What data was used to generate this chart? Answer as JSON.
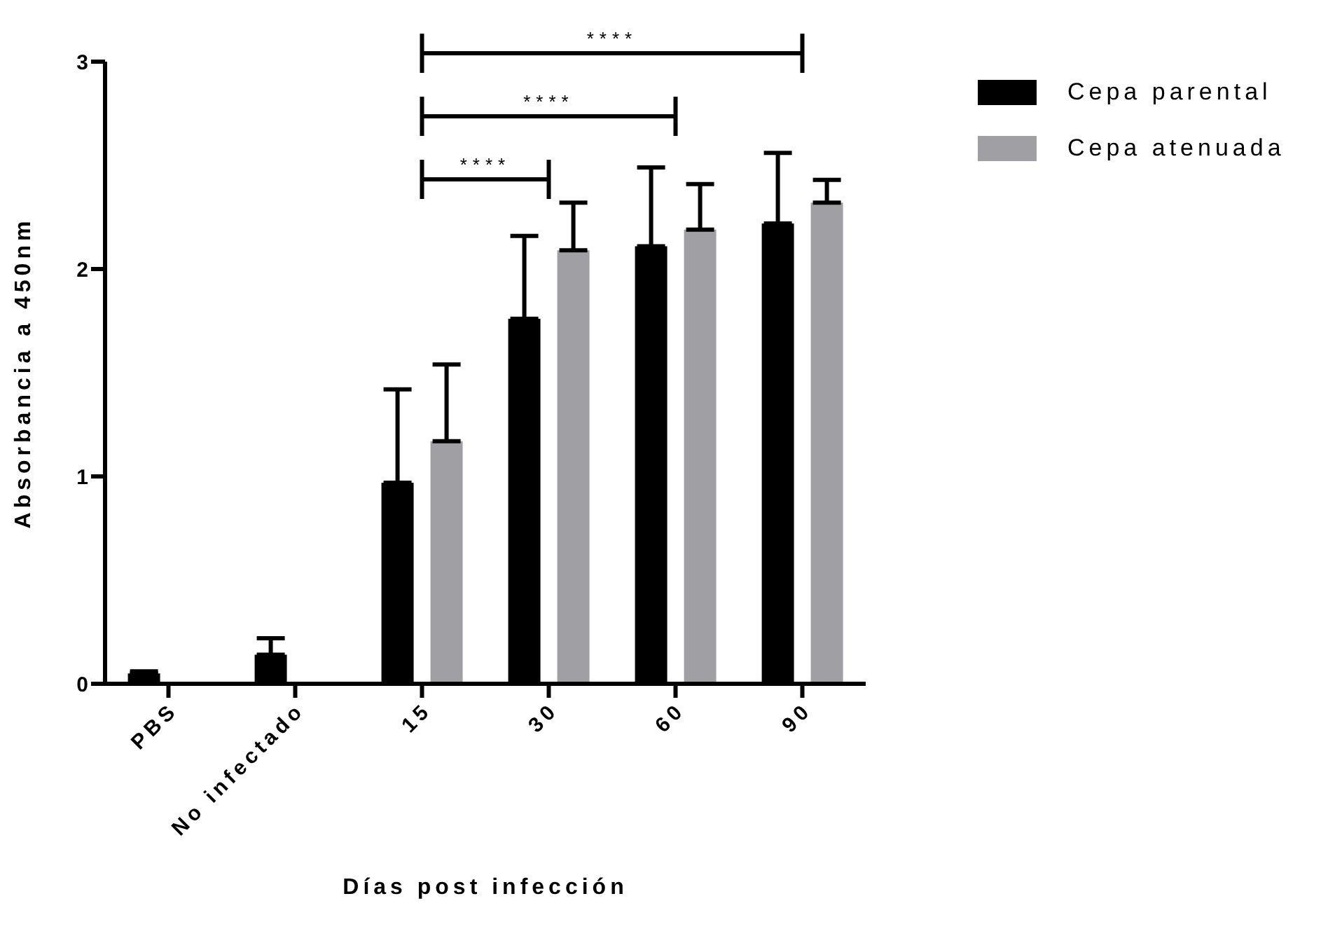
{
  "chart_data": {
    "type": "bar",
    "xlabel": "Días post infección",
    "ylabel": "Absorbancia a 450nm",
    "categories": [
      "PBS",
      "No infectado",
      "15",
      "30",
      "60",
      "90"
    ],
    "series": [
      {
        "name": "Cepa parental",
        "color": "#000000",
        "values": [
          0.05,
          0.14,
          0.97,
          1.76,
          2.11,
          2.22
        ],
        "errors": [
          [
            0.05,
            0.06
          ],
          [
            0.14,
            0.22
          ],
          [
            0.97,
            1.42
          ],
          [
            1.76,
            2.16
          ],
          [
            2.11,
            2.49
          ],
          [
            2.22,
            2.56
          ]
        ]
      },
      {
        "name": "Cepa atenuada",
        "color": "#a0a0a4",
        "values": [
          null,
          null,
          1.17,
          2.09,
          2.19,
          2.32
        ],
        "errors": [
          null,
          null,
          [
            1.17,
            1.54
          ],
          [
            2.09,
            2.32
          ],
          [
            2.19,
            2.41
          ],
          [
            2.32,
            2.43
          ]
        ]
      }
    ],
    "annotations": [
      "****",
      "****",
      "****"
    ],
    "ylim": [
      0,
      3
    ],
    "yticks": [
      0,
      1,
      2,
      3
    ],
    "grid": false,
    "legend": "top right"
  }
}
